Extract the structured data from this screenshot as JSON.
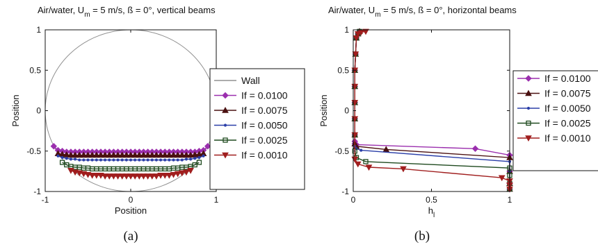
{
  "captions": [
    "(a)",
    "(b)"
  ],
  "chart_data": [
    {
      "type": "line",
      "title": {
        "pre": "Air/water, U",
        "sub": "m",
        "post": " = 5 m/s, ß = 0°, vertical beams"
      },
      "xlabel": {
        "text": "Position",
        "sub": ""
      },
      "ylabel": "Position",
      "xlim": [
        -1,
        1
      ],
      "ylim": [
        -1,
        1
      ],
      "xticks": [
        -1,
        0,
        1
      ],
      "xtick_labels": [
        "-1",
        "0",
        "1"
      ],
      "yticks": [
        1,
        0.5,
        0,
        -0.5,
        -1
      ],
      "ytick_labels": [
        "1",
        "0.5",
        "0",
        "-0.5",
        "-1"
      ],
      "grid": false,
      "legend": "outside-right",
      "wall": {
        "name": "Wall",
        "color": "#909090"
      },
      "series": [
        {
          "name": "If = 0.0100",
          "color": "#9b2fae",
          "marker": "diamond",
          "x": [
            -0.9,
            -0.85,
            -0.8,
            -0.75,
            -0.7,
            -0.65,
            -0.6,
            -0.55,
            -0.5,
            -0.45,
            -0.4,
            -0.35,
            -0.3,
            -0.25,
            -0.2,
            -0.15,
            -0.1,
            -0.05,
            0,
            0.05,
            0.1,
            0.15,
            0.2,
            0.25,
            0.3,
            0.35,
            0.4,
            0.45,
            0.5,
            0.55,
            0.6,
            0.65,
            0.7,
            0.75,
            0.8,
            0.85,
            0.9
          ],
          "y": [
            -0.44,
            -0.49,
            -0.5,
            -0.51,
            -0.51,
            -0.51,
            -0.51,
            -0.51,
            -0.51,
            -0.51,
            -0.51,
            -0.51,
            -0.51,
            -0.51,
            -0.51,
            -0.51,
            -0.51,
            -0.51,
            -0.51,
            -0.51,
            -0.51,
            -0.51,
            -0.51,
            -0.51,
            -0.51,
            -0.51,
            -0.51,
            -0.51,
            -0.51,
            -0.51,
            -0.51,
            -0.51,
            -0.51,
            -0.51,
            -0.5,
            -0.49,
            -0.44
          ]
        },
        {
          "name": "If = 0.0075",
          "color": "#4a1010",
          "marker": "triangle-up",
          "x": [
            -0.85,
            -0.8,
            -0.75,
            -0.7,
            -0.65,
            -0.6,
            -0.55,
            -0.5,
            -0.45,
            -0.4,
            -0.35,
            -0.3,
            -0.25,
            -0.2,
            -0.15,
            -0.1,
            -0.05,
            0,
            0.05,
            0.1,
            0.15,
            0.2,
            0.25,
            0.3,
            0.35,
            0.4,
            0.45,
            0.5,
            0.55,
            0.6,
            0.65,
            0.7,
            0.75,
            0.8,
            0.85
          ],
          "y": [
            -0.53,
            -0.54,
            -0.545,
            -0.55,
            -0.55,
            -0.55,
            -0.55,
            -0.55,
            -0.55,
            -0.55,
            -0.55,
            -0.55,
            -0.55,
            -0.55,
            -0.55,
            -0.55,
            -0.55,
            -0.55,
            -0.55,
            -0.55,
            -0.55,
            -0.55,
            -0.55,
            -0.55,
            -0.55,
            -0.55,
            -0.55,
            -0.55,
            -0.55,
            -0.55,
            -0.55,
            -0.55,
            -0.545,
            -0.54,
            -0.53
          ]
        },
        {
          "name": "If = 0.0050",
          "color": "#2b3fa8",
          "marker": "point",
          "x": [
            -0.85,
            -0.8,
            -0.75,
            -0.7,
            -0.65,
            -0.6,
            -0.55,
            -0.5,
            -0.45,
            -0.4,
            -0.35,
            -0.3,
            -0.25,
            -0.2,
            -0.15,
            -0.1,
            -0.05,
            0,
            0.05,
            0.1,
            0.15,
            0.2,
            0.25,
            0.3,
            0.35,
            0.4,
            0.45,
            0.5,
            0.55,
            0.6,
            0.65,
            0.7,
            0.75,
            0.8,
            0.85
          ],
          "y": [
            -0.56,
            -0.58,
            -0.59,
            -0.6,
            -0.6,
            -0.61,
            -0.61,
            -0.61,
            -0.61,
            -0.61,
            -0.61,
            -0.61,
            -0.61,
            -0.61,
            -0.61,
            -0.61,
            -0.61,
            -0.61,
            -0.61,
            -0.61,
            -0.61,
            -0.61,
            -0.61,
            -0.61,
            -0.61,
            -0.61,
            -0.61,
            -0.61,
            -0.61,
            -0.61,
            -0.6,
            -0.6,
            -0.59,
            -0.58,
            -0.56
          ]
        },
        {
          "name": "If = 0.0025",
          "color": "#1f4a1f",
          "marker": "square",
          "x": [
            -0.8,
            -0.75,
            -0.7,
            -0.65,
            -0.6,
            -0.55,
            -0.5,
            -0.45,
            -0.4,
            -0.35,
            -0.3,
            -0.25,
            -0.2,
            -0.15,
            -0.1,
            -0.05,
            0,
            0.05,
            0.1,
            0.15,
            0.2,
            0.25,
            0.3,
            0.35,
            0.4,
            0.45,
            0.5,
            0.55,
            0.6,
            0.65,
            0.7,
            0.75,
            0.8
          ],
          "y": [
            -0.64,
            -0.67,
            -0.69,
            -0.7,
            -0.7,
            -0.71,
            -0.71,
            -0.72,
            -0.72,
            -0.72,
            -0.72,
            -0.72,
            -0.72,
            -0.72,
            -0.72,
            -0.72,
            -0.72,
            -0.72,
            -0.72,
            -0.72,
            -0.72,
            -0.72,
            -0.72,
            -0.72,
            -0.72,
            -0.72,
            -0.71,
            -0.71,
            -0.7,
            -0.7,
            -0.69,
            -0.67,
            -0.64
          ]
        },
        {
          "name": "If = 0.0010",
          "color": "#a01e1e",
          "marker": "triangle-down",
          "x": [
            -0.7,
            -0.65,
            -0.6,
            -0.55,
            -0.5,
            -0.45,
            -0.4,
            -0.35,
            -0.3,
            -0.25,
            -0.2,
            -0.15,
            -0.1,
            -0.05,
            0,
            0.05,
            0.1,
            0.15,
            0.2,
            0.25,
            0.3,
            0.35,
            0.4,
            0.45,
            0.5,
            0.55,
            0.6,
            0.65,
            0.7
          ],
          "y": [
            -0.74,
            -0.76,
            -0.77,
            -0.78,
            -0.79,
            -0.8,
            -0.8,
            -0.8,
            -0.81,
            -0.81,
            -0.81,
            -0.81,
            -0.81,
            -0.81,
            -0.81,
            -0.81,
            -0.81,
            -0.81,
            -0.81,
            -0.81,
            -0.81,
            -0.8,
            -0.8,
            -0.8,
            -0.79,
            -0.78,
            -0.77,
            -0.76,
            -0.74
          ]
        }
      ]
    },
    {
      "type": "line",
      "title": {
        "pre": "Air/water, U",
        "sub": "m",
        "post": " = 5 m/s, ß = 0°, horizontal beams"
      },
      "xlabel": {
        "text": "h",
        "sub": "l"
      },
      "ylabel": "Position",
      "xlim": [
        0,
        1
      ],
      "ylim": [
        -1,
        1
      ],
      "xticks": [
        0,
        0.5,
        1
      ],
      "xtick_labels": [
        "0",
        "0.5",
        "1"
      ],
      "yticks": [
        1,
        0.5,
        0,
        -0.5,
        -1
      ],
      "ytick_labels": [
        "1",
        "0.5",
        "0",
        "-0.5",
        "-1"
      ],
      "grid": false,
      "legend": "outside-right",
      "series": [
        {
          "name": "If = 0.0100",
          "color": "#9b2fae",
          "marker": "diamond",
          "x": [
            0.04,
            0.03,
            0.02,
            0.015,
            0.01,
            0.01,
            0.01,
            0.01,
            0.01,
            0.01,
            0.01,
            0.02,
            0.78,
            1.0,
            1.0,
            1.0,
            1.0
          ],
          "y": [
            0.98,
            0.95,
            0.9,
            0.7,
            0.5,
            0.3,
            0.1,
            -0.1,
            -0.3,
            -0.38,
            -0.41,
            -0.42,
            -0.47,
            -0.55,
            -0.75,
            -0.9,
            -0.97
          ]
        },
        {
          "name": "If = 0.0075",
          "color": "#4a1010",
          "marker": "triangle-up",
          "x": [
            0.04,
            0.03,
            0.02,
            0.015,
            0.01,
            0.01,
            0.01,
            0.01,
            0.01,
            0.01,
            0.02,
            0.21,
            1.0,
            1.0,
            1.0,
            1.0
          ],
          "y": [
            0.98,
            0.95,
            0.9,
            0.7,
            0.5,
            0.3,
            0.1,
            -0.1,
            -0.3,
            -0.41,
            -0.44,
            -0.48,
            -0.58,
            -0.75,
            -0.9,
            -0.97
          ]
        },
        {
          "name": "If = 0.0050",
          "color": "#2b3fa8",
          "marker": "point",
          "x": [
            0.04,
            0.03,
            0.02,
            0.015,
            0.01,
            0.01,
            0.01,
            0.01,
            0.01,
            0.01,
            0.02,
            0.05,
            1.0,
            1.0,
            1.0,
            1.0
          ],
          "y": [
            0.98,
            0.95,
            0.9,
            0.7,
            0.5,
            0.3,
            0.1,
            -0.1,
            -0.3,
            -0.44,
            -0.47,
            -0.49,
            -0.63,
            -0.75,
            -0.9,
            -0.97
          ]
        },
        {
          "name": "If = 0.0025",
          "color": "#1f4a1f",
          "marker": "square",
          "x": [
            0.04,
            0.03,
            0.02,
            0.015,
            0.01,
            0.01,
            0.01,
            0.01,
            0.01,
            0.01,
            0.02,
            0.08,
            1.0,
            1.0,
            1.0,
            1.0
          ],
          "y": [
            0.98,
            0.95,
            0.9,
            0.7,
            0.5,
            0.3,
            0.1,
            -0.1,
            -0.3,
            -0.5,
            -0.58,
            -0.63,
            -0.71,
            -0.8,
            -0.9,
            -0.97
          ]
        },
        {
          "name": "If = 0.0010",
          "color": "#a01e1e",
          "marker": "triangle-down",
          "x": [
            0.08,
            0.05,
            0.03,
            0.02,
            0.015,
            0.01,
            0.01,
            0.01,
            0.01,
            0.01,
            0.01,
            0.03,
            0.1,
            0.32,
            0.95,
            1.0,
            1.0,
            1.0
          ],
          "y": [
            0.98,
            0.97,
            0.95,
            0.9,
            0.7,
            0.5,
            0.3,
            0.1,
            -0.1,
            -0.3,
            -0.6,
            -0.66,
            -0.7,
            -0.72,
            -0.83,
            -0.87,
            -0.92,
            -0.97
          ]
        }
      ]
    }
  ]
}
